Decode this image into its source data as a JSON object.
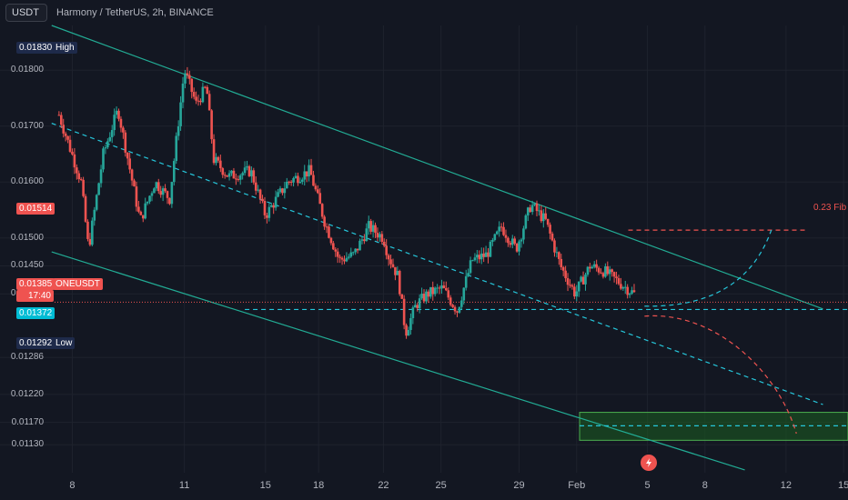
{
  "header": {
    "currency_button": "USDT",
    "title": "Harmony / TetherUS, 2h, BINANCE"
  },
  "colors": {
    "background": "#131722",
    "up": "#26a69a",
    "down": "#ef5350",
    "channel": "#22ab94",
    "dashed_midline": "#26c6da",
    "projection": "#ef5350",
    "zone_fill": "#1b5e20",
    "zone_border": "#4caf50"
  },
  "chart_data": {
    "type": "candlestick",
    "title": "Harmony / TetherUS, 2h, BINANCE",
    "x_ticks": [
      "8",
      "11",
      "15",
      "18",
      "22",
      "25",
      "29",
      "Feb",
      "5",
      "8",
      "12",
      "15"
    ],
    "y_ticks": [
      "0.01800",
      "0.01700",
      "0.01600",
      "0.01500",
      "0.01450",
      "0.01400",
      "0.01286",
      "0.01220",
      "0.01170",
      "0.01130"
    ],
    "ylim": [
      0.0108,
      0.0188
    ],
    "grid": true,
    "price_tags": {
      "high": {
        "value": "0.01830",
        "label": "High"
      },
      "fib": {
        "value": "0.01514"
      },
      "last": {
        "value": "0.01385",
        "symbol": "ONEUSDT",
        "countdown": "17:40"
      },
      "support": {
        "value": "0.01372"
      },
      "low": {
        "value": "0.01292",
        "label": "Low"
      }
    },
    "annotations": {
      "fib_label": "0.23 Fib"
    },
    "price_path": [
      [
        0,
        0.0172
      ],
      [
        1.5,
        0.016
      ],
      [
        2,
        0.0148
      ],
      [
        3,
        0.0165
      ],
      [
        4,
        0.0173
      ],
      [
        5.5,
        0.0153
      ],
      [
        6.5,
        0.016
      ],
      [
        7.5,
        0.0157
      ],
      [
        8.5,
        0.018
      ],
      [
        9.3,
        0.0174
      ],
      [
        10,
        0.0177
      ],
      [
        10.5,
        0.0164
      ],
      [
        11.5,
        0.0161
      ],
      [
        13,
        0.0162
      ],
      [
        14,
        0.0154
      ],
      [
        15.5,
        0.016
      ],
      [
        17,
        0.0162
      ],
      [
        18,
        0.0153
      ],
      [
        19,
        0.0146
      ],
      [
        20,
        0.0147
      ],
      [
        21,
        0.0152
      ],
      [
        22,
        0.015
      ],
      [
        22.3,
        0.0147
      ],
      [
        23,
        0.0143
      ],
      [
        23.5,
        0.0133
      ],
      [
        24.2,
        0.0138
      ],
      [
        25,
        0.014
      ],
      [
        26,
        0.0141
      ],
      [
        27,
        0.0137
      ],
      [
        28,
        0.0146
      ],
      [
        29,
        0.0147
      ],
      [
        30,
        0.0152
      ],
      [
        31,
        0.0148
      ],
      [
        32,
        0.0156
      ],
      [
        33,
        0.0153
      ],
      [
        34,
        0.0145
      ],
      [
        35,
        0.014
      ],
      [
        36,
        0.0145
      ],
      [
        37,
        0.0144
      ],
      [
        38,
        0.0142
      ],
      [
        39,
        0.014
      ]
    ],
    "x_axis_index": [
      {
        "label": "8",
        "idx": 0.9
      },
      {
        "label": "11",
        "idx": 8.5
      },
      {
        "label": "15",
        "idx": 14
      },
      {
        "label": "18",
        "idx": 17.6
      },
      {
        "label": "22",
        "idx": 22
      },
      {
        "label": "25",
        "idx": 25.9
      },
      {
        "label": "29",
        "idx": 31.2
      },
      {
        "label": "Feb",
        "idx": 35.1
      },
      {
        "label": "5",
        "idx": 39.9
      },
      {
        "label": "8",
        "idx": 43.8
      },
      {
        "label": "12",
        "idx": 49.3
      },
      {
        "label": "15",
        "idx": 53.2
      }
    ],
    "x_range": [
      -0.3,
      53.5
    ],
    "lines": {
      "channel_upper": [
        [
          -0.5,
          0.0188
        ],
        [
          51.8,
          0.01373
        ]
      ],
      "channel_lower": [
        [
          -0.5,
          0.01475
        ],
        [
          46.5,
          0.01085
        ]
      ],
      "midline_dashed": [
        [
          -0.5,
          0.01705
        ],
        [
          51.8,
          0.01202
        ]
      ],
      "support_dashed": [
        [
          12.6,
          0.01372
        ],
        [
          53.5,
          0.01372
        ]
      ],
      "fib_dashed": [
        [
          38.6,
          0.01514
        ],
        [
          50.8,
          0.01514
        ]
      ],
      "zone_midline": [
        [
          35.3,
          0.01164
        ],
        [
          53.5,
          0.01164
        ]
      ]
    },
    "zone": {
      "x": [
        35.3,
        53.5
      ],
      "y": [
        0.01138,
        0.01188
      ]
    },
    "projections": {
      "bullish": [
        [
          39.7,
          0.01378
        ],
        [
          45,
          0.01375
        ],
        [
          47.3,
          0.0144
        ],
        [
          48.3,
          0.01514
        ]
      ],
      "bearish": [
        [
          39.7,
          0.0136
        ],
        [
          44.5,
          0.0137
        ],
        [
          48.8,
          0.0126
        ],
        [
          50,
          0.0115
        ]
      ]
    }
  }
}
